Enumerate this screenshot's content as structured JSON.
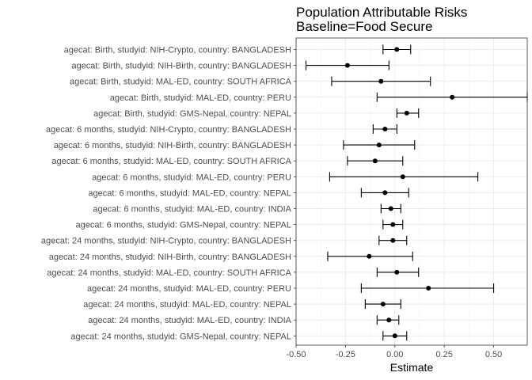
{
  "chart_data": {
    "type": "forest",
    "title": "Population Attributable Risks",
    "subtitle": "Baseline=Food Secure",
    "xlabel": "Estimate",
    "ylabel": "",
    "xlim": [
      -0.5,
      0.67
    ],
    "x_ticks": [
      "-0.50",
      "-0.25",
      "0.00",
      "0.25",
      "0.50"
    ],
    "x_tick_values": [
      -0.5,
      -0.25,
      0.0,
      0.25,
      0.5
    ],
    "grid": true,
    "legend": "none",
    "rows": [
      {
        "label": "agecat: Birth, studyid: NIH-Crypto, country: BANGLADESH",
        "estimate": 0.01,
        "lower": -0.06,
        "upper": 0.08
      },
      {
        "label": "agecat: Birth, studyid: NIH-Birth, country: BANGLADESH",
        "estimate": -0.24,
        "lower": -0.45,
        "upper": -0.03
      },
      {
        "label": "agecat: Birth, studyid: MAL-ED, country: SOUTH AFRICA",
        "estimate": -0.07,
        "lower": -0.32,
        "upper": 0.18
      },
      {
        "label": "agecat: Birth, studyid: MAL-ED, country: PERU",
        "estimate": 0.29,
        "lower": -0.09,
        "upper": 0.67
      },
      {
        "label": "agecat: Birth, studyid: GMS-Nepal, country: NEPAL",
        "estimate": 0.06,
        "lower": 0.01,
        "upper": 0.12
      },
      {
        "label": "agecat: 6 months, studyid: NIH-Crypto, country: BANGLADESH",
        "estimate": -0.05,
        "lower": -0.11,
        "upper": 0.01
      },
      {
        "label": "agecat: 6 months, studyid: NIH-Birth, country: BANGLADESH",
        "estimate": -0.08,
        "lower": -0.26,
        "upper": 0.1
      },
      {
        "label": "agecat: 6 months, studyid: MAL-ED, country: SOUTH AFRICA",
        "estimate": -0.1,
        "lower": -0.24,
        "upper": 0.04
      },
      {
        "label": "agecat: 6 months, studyid: MAL-ED, country: PERU",
        "estimate": 0.04,
        "lower": -0.33,
        "upper": 0.42
      },
      {
        "label": "agecat: 6 months, studyid: MAL-ED, country: NEPAL",
        "estimate": -0.05,
        "lower": -0.17,
        "upper": 0.07
      },
      {
        "label": "agecat: 6 months, studyid: MAL-ED, country: INDIA",
        "estimate": -0.02,
        "lower": -0.07,
        "upper": 0.03
      },
      {
        "label": "agecat: 6 months, studyid: GMS-Nepal, country: NEPAL",
        "estimate": -0.01,
        "lower": -0.06,
        "upper": 0.04
      },
      {
        "label": "agecat: 24 months, studyid: NIH-Crypto, country: BANGLADESH",
        "estimate": -0.01,
        "lower": -0.08,
        "upper": 0.06
      },
      {
        "label": "agecat: 24 months, studyid: NIH-Birth, country: BANGLADESH",
        "estimate": -0.13,
        "lower": -0.34,
        "upper": 0.09
      },
      {
        "label": "agecat: 24 months, studyid: MAL-ED, country: SOUTH AFRICA",
        "estimate": 0.01,
        "lower": -0.09,
        "upper": 0.12
      },
      {
        "label": "agecat: 24 months, studyid: MAL-ED, country: PERU",
        "estimate": 0.17,
        "lower": -0.17,
        "upper": 0.5
      },
      {
        "label": "agecat: 24 months, studyid: MAL-ED, country: NEPAL",
        "estimate": -0.06,
        "lower": -0.15,
        "upper": 0.03
      },
      {
        "label": "agecat: 24 months, studyid: MAL-ED, country: INDIA",
        "estimate": -0.03,
        "lower": -0.09,
        "upper": 0.02
      },
      {
        "label": "agecat: 24 months, studyid: GMS-Nepal, country: NEPAL",
        "estimate": 0.0,
        "lower": -0.06,
        "upper": 0.06
      }
    ]
  }
}
